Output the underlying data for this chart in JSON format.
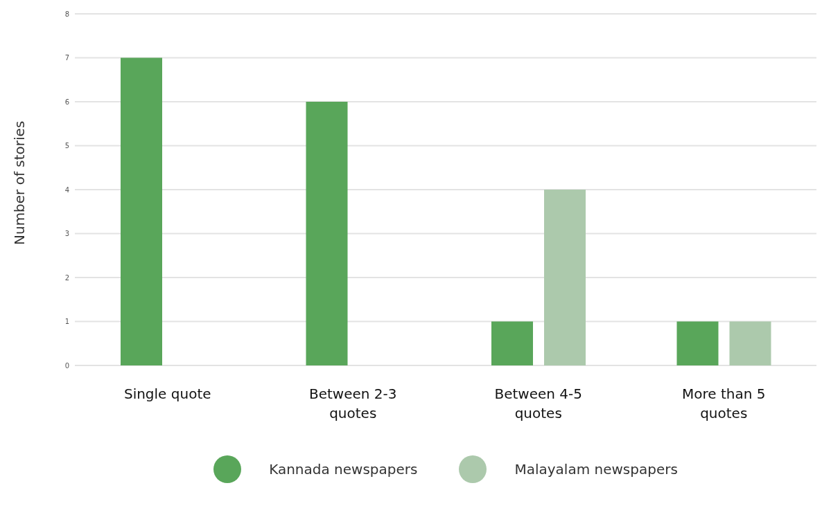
{
  "chart_data": {
    "type": "bar",
    "ylabel": "Number of stories",
    "categories": [
      "Single quote",
      "Between 2-3 quotes",
      "Between 4-5 quotes",
      "More than 5 quotes"
    ],
    "series": [
      {
        "name": "Kannada newspapers",
        "color": "#59a65a",
        "values": [
          7,
          6,
          1,
          1
        ]
      },
      {
        "name": "Malayalam newspapers",
        "color": "#acc9ac",
        "values": [
          0,
          0,
          4,
          1
        ]
      }
    ],
    "ylim": [
      0,
      8
    ],
    "yticks": [
      0,
      1,
      2,
      3,
      4,
      5,
      6,
      7,
      8
    ],
    "grid": "y",
    "legend": "bottom"
  }
}
